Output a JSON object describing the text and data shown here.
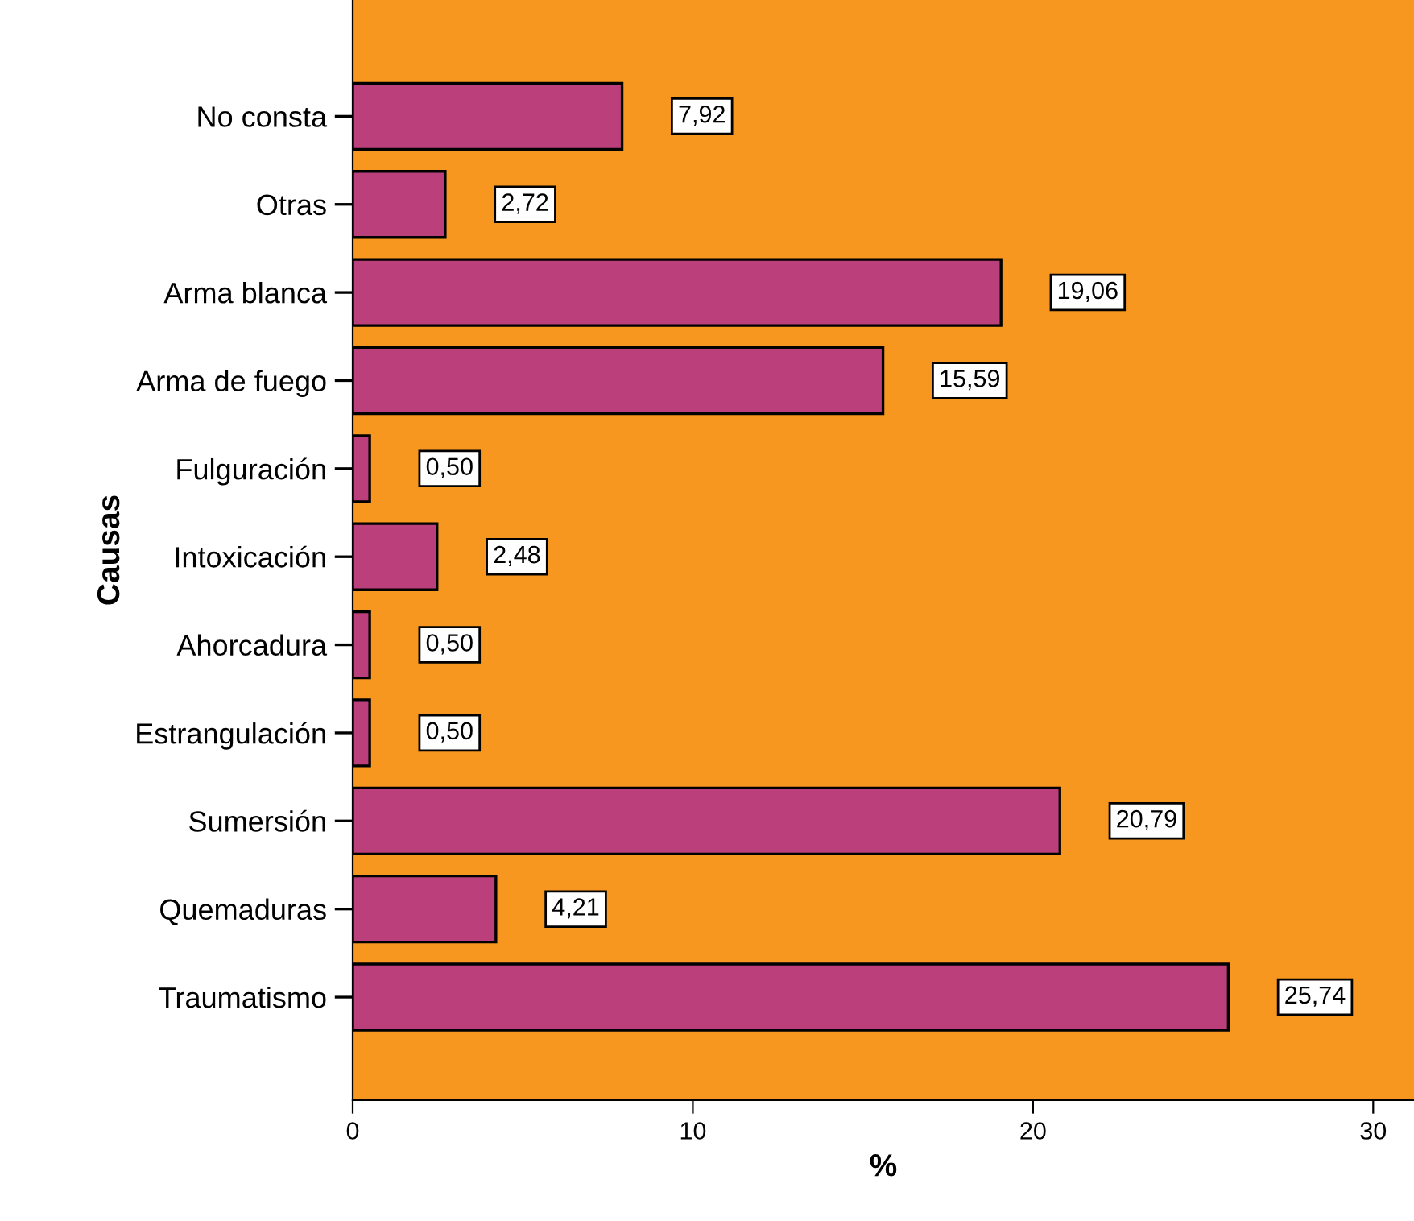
{
  "chart_data": {
    "type": "bar",
    "orientation": "horizontal",
    "xlabel": "%",
    "ylabel": "Causas",
    "categories": [
      "No consta",
      "Otras",
      "Arma blanca",
      "Arma de fuego",
      "Fulguración",
      "Intoxicación",
      "Ahorcadura",
      "Estrangulación",
      "Sumersión",
      "Quemaduras",
      "Traumatismo"
    ],
    "values": [
      7.92,
      2.72,
      19.06,
      15.59,
      0.5,
      2.48,
      0.5,
      0.5,
      20.79,
      4.21,
      25.74
    ],
    "value_labels": [
      "7,92",
      "2,72",
      "19,06",
      "15,59",
      "0,50",
      "2,48",
      "0,50",
      "0,50",
      "20,79",
      "4,21",
      "25,74"
    ],
    "color": "#bb3f7a",
    "xlim": [
      0,
      31.2
    ],
    "xticks": [
      0,
      10,
      20,
      30
    ],
    "grid": false,
    "legend": false
  }
}
